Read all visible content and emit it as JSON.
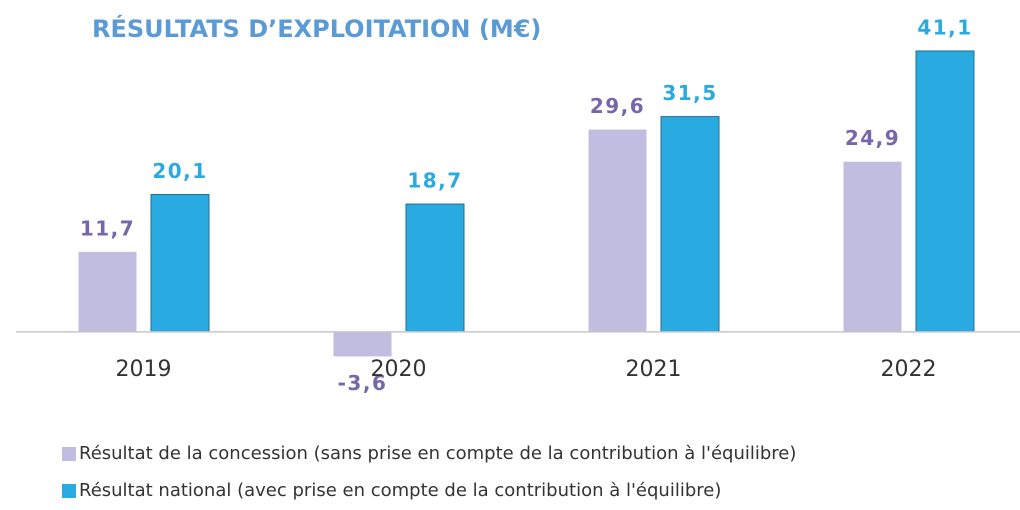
{
  "chart_data": {
    "type": "bar",
    "title": "RÉSULTATS D’EXPLOITATION (M€)",
    "categories": [
      "2019",
      "2020",
      "2021",
      "2022"
    ],
    "series": [
      {
        "name": "Résultat de la concession (sans prise en compte de la contribution à l'équilibre)",
        "color": "#c0bde0",
        "label_color": "#7667ad",
        "values": [
          11.7,
          -3.6,
          29.6,
          24.9
        ],
        "value_labels": [
          "11,7",
          "-3,6",
          "29,6",
          "24,9"
        ]
      },
      {
        "name": "Résultat national (avec prise en compte de la contribution à l'équilibre)",
        "color": "#29abe2",
        "label_color": "#29abe2",
        "values": [
          20.1,
          18.7,
          31.5,
          41.1
        ],
        "value_labels": [
          "20,1",
          "18,7",
          "31,5",
          "41,1"
        ]
      }
    ],
    "ylim": [
      -5,
      43
    ]
  }
}
